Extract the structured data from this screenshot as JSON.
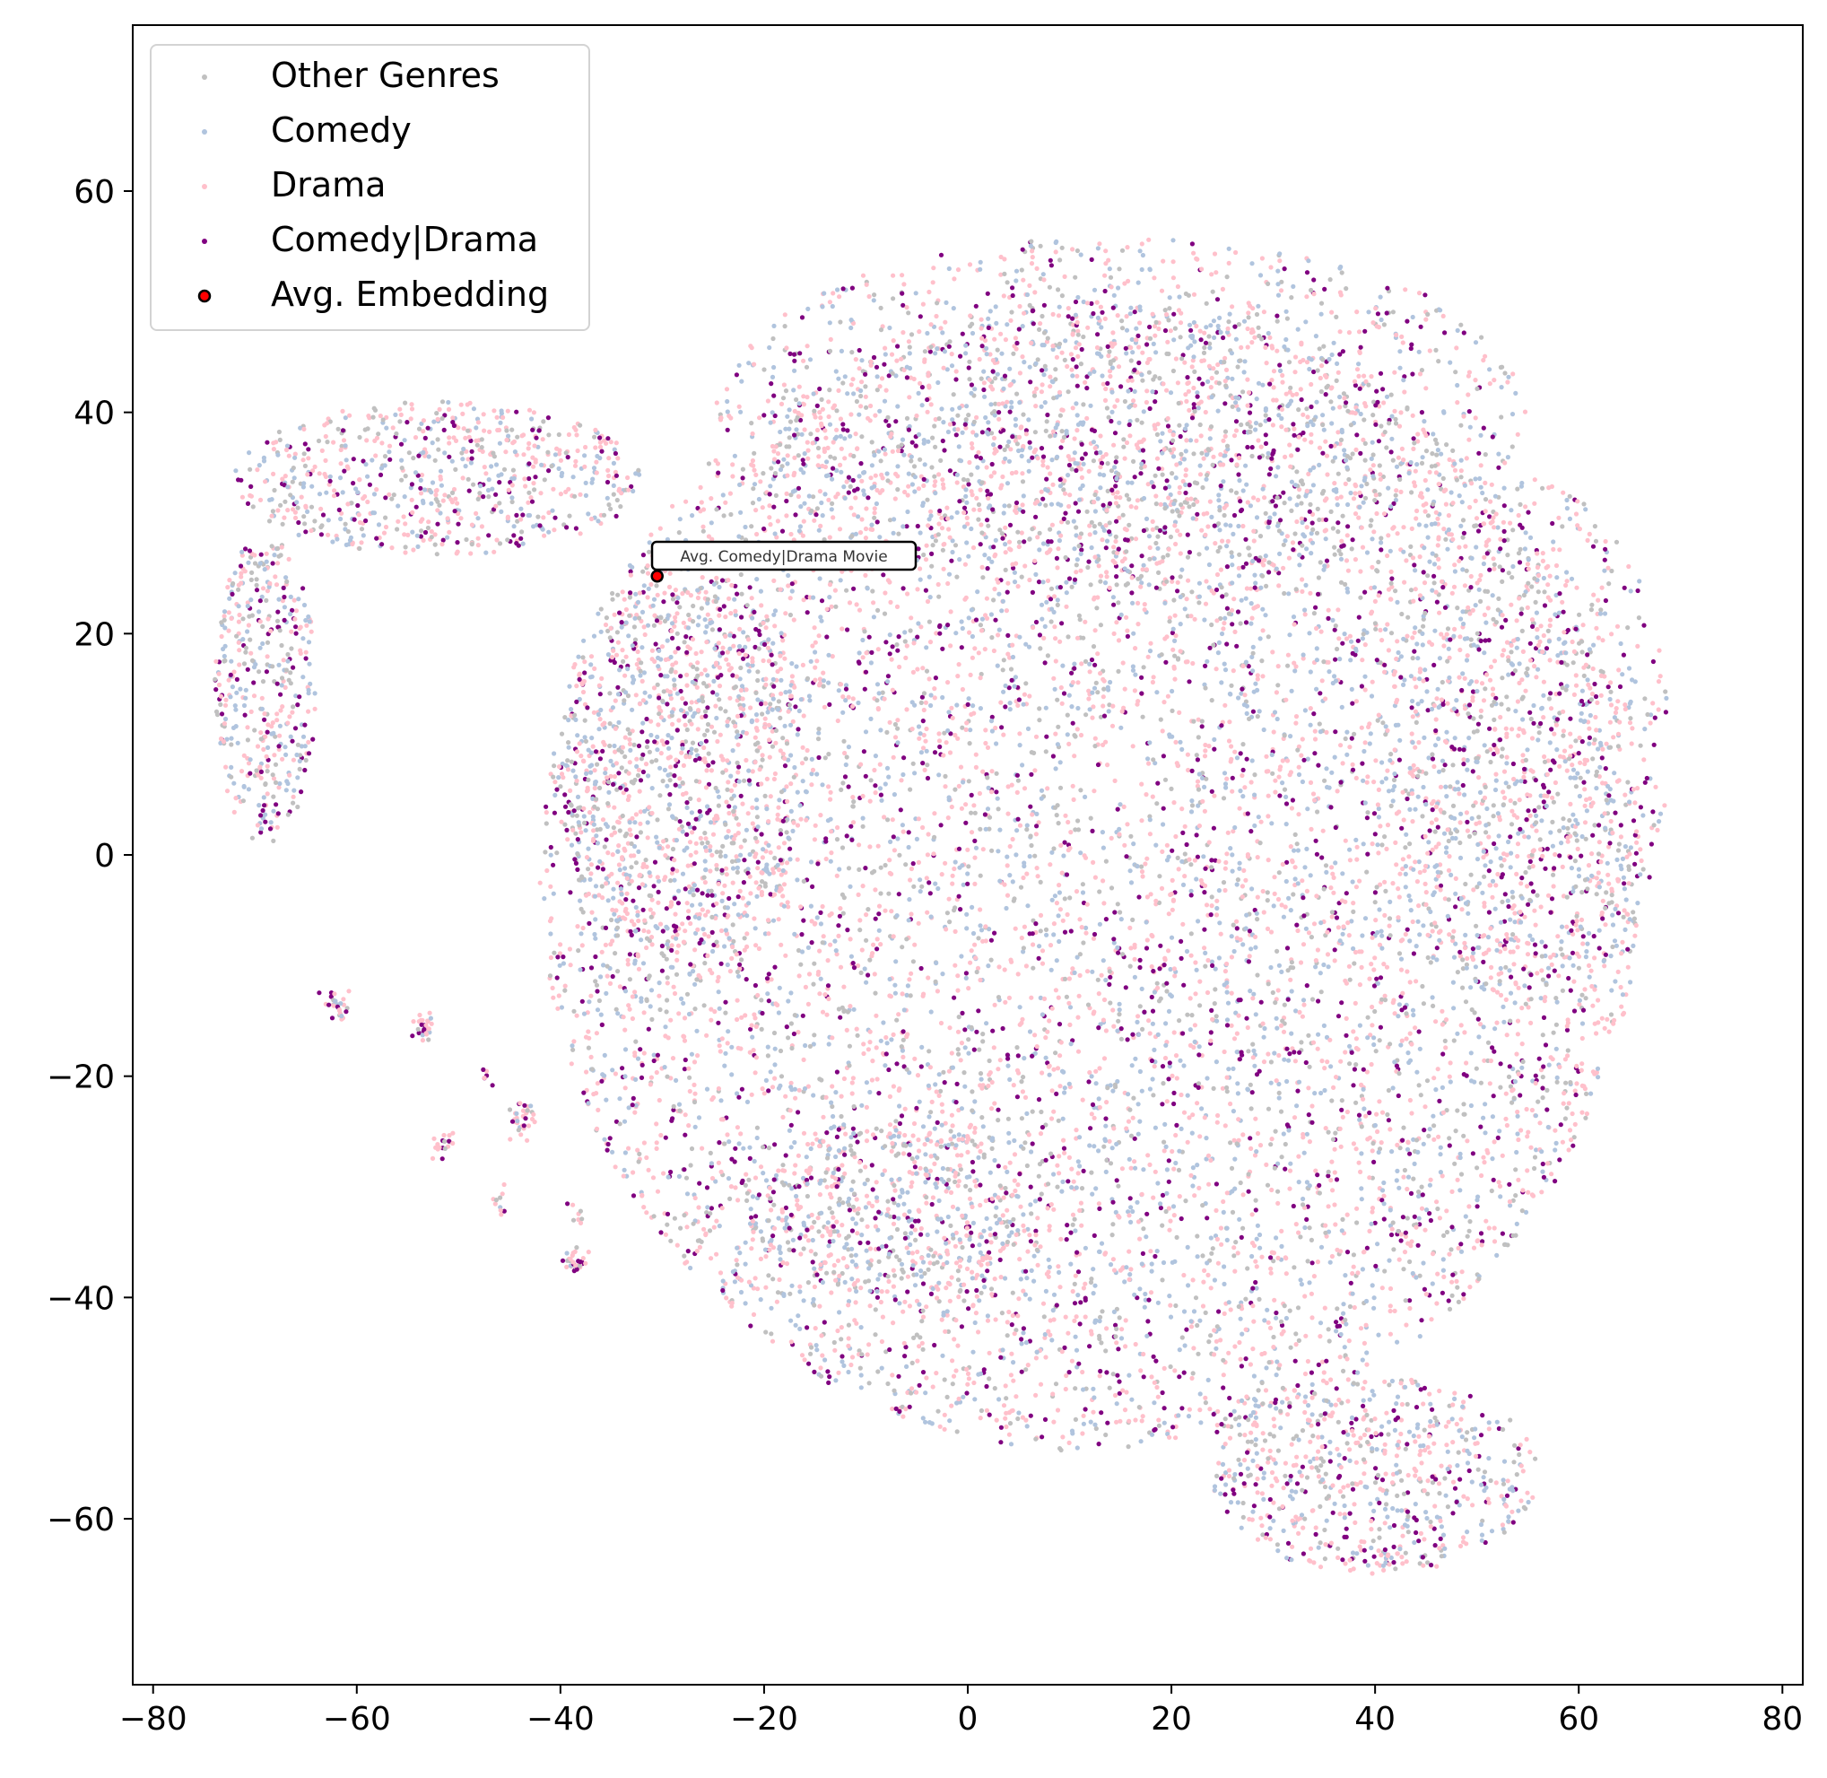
{
  "chart_data": {
    "type": "scatter",
    "title": "",
    "xlabel": "",
    "ylabel": "",
    "xlim": [
      -82,
      82
    ],
    "ylim": [
      -75,
      75
    ],
    "xticks": [
      -80,
      -60,
      -40,
      -20,
      0,
      20,
      40,
      60,
      80
    ],
    "yticks": [
      -60,
      -40,
      -20,
      0,
      20,
      40,
      60
    ],
    "xtick_labels": [
      "−80",
      "−60",
      "−40",
      "−20",
      "0",
      "20",
      "40",
      "60",
      "80"
    ],
    "ytick_labels": [
      "−60",
      "−40",
      "−20",
      "0",
      "20",
      "40",
      "60"
    ],
    "grid": false,
    "legend_position": "upper-left",
    "series": [
      {
        "name": "Other Genres",
        "color": "#c0c0c0",
        "approx_points": 2600
      },
      {
        "name": "Comedy",
        "color": "#b0c4de",
        "approx_points": 3600
      },
      {
        "name": "Drama",
        "color": "#ffc0cb",
        "approx_points": 5200
      },
      {
        "name": "Comedy|Drama",
        "color": "#800080",
        "approx_points": 2000
      },
      {
        "name": "Avg. Embedding",
        "color": "#ff0000",
        "edge_color": "#000000",
        "points": [
          {
            "x": -30.5,
            "y": 25.2
          }
        ]
      }
    ],
    "annotation": {
      "text": "Avg. Comedy|Drama Movie",
      "x": -30.5,
      "y": 25.2
    },
    "regions": [
      {
        "cx": 12,
        "cy": -2,
        "rx": 54,
        "ry": 52,
        "w": 0.62
      },
      {
        "cx": 15,
        "cy": 40,
        "rx": 40,
        "ry": 16,
        "w": 0.1
      },
      {
        "cx": -52,
        "cy": 34,
        "rx": 20,
        "ry": 7,
        "w": 0.05
      },
      {
        "cx": -69,
        "cy": 15,
        "rx": 5,
        "ry": 14,
        "w": 0.03
      },
      {
        "cx": 40,
        "cy": -56,
        "rx": 16,
        "ry": 9,
        "w": 0.05
      },
      {
        "cx": -28,
        "cy": 8,
        "rx": 12,
        "ry": 20,
        "w": 0.06
      },
      {
        "cx": 55,
        "cy": 10,
        "rx": 14,
        "ry": 24,
        "w": 0.06
      },
      {
        "cx": -8,
        "cy": -32,
        "rx": 14,
        "ry": 8,
        "w": 0.03
      }
    ],
    "small_clusters": [
      {
        "x": -62,
        "y": -13.5,
        "n": 28
      },
      {
        "x": -53.5,
        "y": -15.5,
        "n": 28
      },
      {
        "x": -51.5,
        "y": -26,
        "n": 18
      },
      {
        "x": -47,
        "y": -19.5,
        "n": 6
      },
      {
        "x": -43.5,
        "y": -24,
        "n": 34
      },
      {
        "x": -46,
        "y": -31.5,
        "n": 10
      },
      {
        "x": -38.5,
        "y": -36.5,
        "n": 32
      },
      {
        "x": -38.5,
        "y": -32.5,
        "n": 8
      }
    ]
  }
}
